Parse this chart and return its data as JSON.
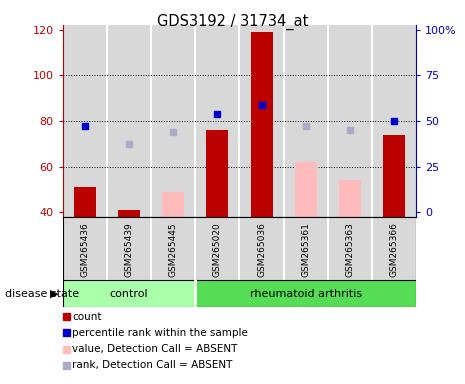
{
  "title": "GDS3192 / 31734_at",
  "samples": [
    "GSM265436",
    "GSM265439",
    "GSM265445",
    "GSM265020",
    "GSM265036",
    "GSM265361",
    "GSM265363",
    "GSM265366"
  ],
  "ylim_left": [
    38,
    122
  ],
  "ylim_right": [
    -0.952381,
    100
  ],
  "yticks_left": [
    40,
    60,
    80,
    100,
    120
  ],
  "yticks_right": [
    0,
    25,
    50,
    75,
    100
  ],
  "ytick_labels_right": [
    "0",
    "25",
    "50",
    "75",
    "100%"
  ],
  "red_bars_left": [
    51,
    41,
    null,
    76,
    119,
    null,
    null,
    74
  ],
  "pink_bars_left": [
    null,
    null,
    49,
    null,
    null,
    62,
    54,
    null
  ],
  "blue_squares_left": [
    78,
    null,
    null,
    83,
    87,
    null,
    null,
    80
  ],
  "lavender_squares_left": [
    null,
    70,
    75,
    null,
    null,
    78,
    76,
    null
  ],
  "bar_width": 0.5,
  "red_color": "#bb0000",
  "pink_color": "#ffbbbb",
  "blue_color": "#0000cc",
  "lavender_color": "#aaaacc",
  "bar_bg_color": "#d8d8d8",
  "plot_bg_color": "#ffffff",
  "control_color": "#aaffaa",
  "ra_color": "#55dd55",
  "legend_items": [
    {
      "color": "#bb0000",
      "label": "count",
      "marker": "square"
    },
    {
      "color": "#0000cc",
      "label": "percentile rank within the sample",
      "marker": "square"
    },
    {
      "color": "#ffbbbb",
      "label": "value, Detection Call = ABSENT",
      "marker": "square"
    },
    {
      "color": "#aaaacc",
      "label": "rank, Detection Call = ABSENT",
      "marker": "square"
    }
  ]
}
